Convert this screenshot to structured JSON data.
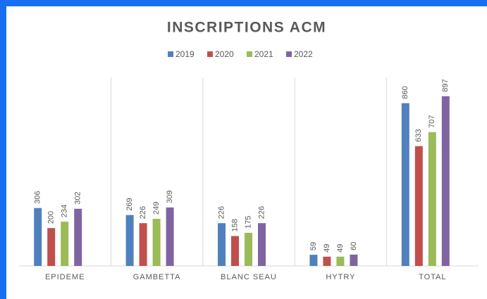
{
  "chart_data": {
    "type": "bar",
    "title": "INSCRIPTIONS ACM",
    "categories": [
      "EPIDEME",
      "GAMBETTA",
      "BLANC SEAU",
      "HYTRY",
      "TOTAL"
    ],
    "series": [
      {
        "name": "2019",
        "color": "#4f81bd",
        "values": [
          306,
          269,
          226,
          59,
          860
        ]
      },
      {
        "name": "2020",
        "color": "#c0504d",
        "values": [
          200,
          226,
          158,
          49,
          633
        ]
      },
      {
        "name": "2021",
        "color": "#9bbb59",
        "values": [
          234,
          249,
          175,
          49,
          707
        ]
      },
      {
        "name": "2022",
        "color": "#8064a2",
        "values": [
          302,
          309,
          226,
          60,
          897
        ]
      }
    ],
    "ylim": [
      0,
      1000
    ]
  }
}
